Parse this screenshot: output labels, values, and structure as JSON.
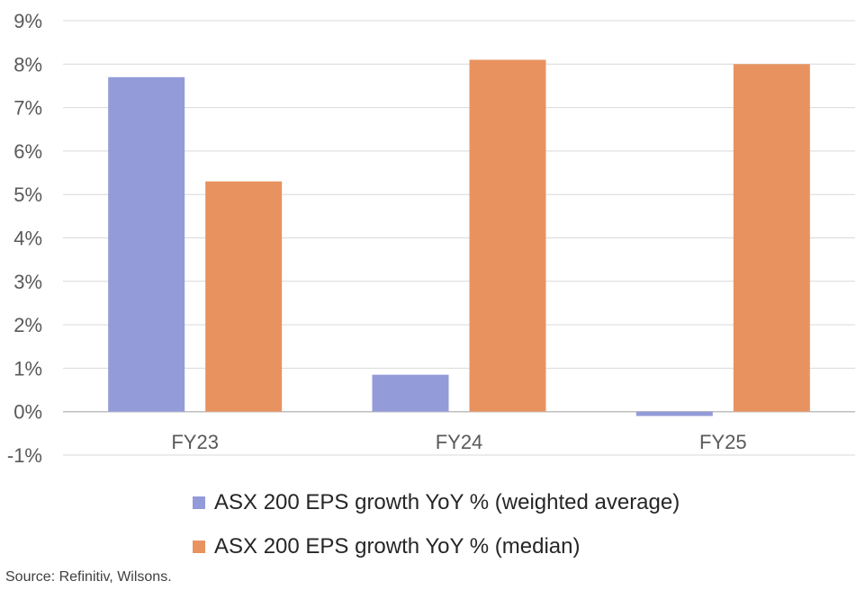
{
  "chart_data": {
    "type": "bar",
    "categories": [
      "FY23",
      "FY24",
      "FY25"
    ],
    "series": [
      {
        "name": "ASX 200 EPS growth YoY % (weighted average)",
        "values": [
          7.7,
          0.85,
          -0.1
        ],
        "color": "#939bd9"
      },
      {
        "name": "ASX 200 EPS growth YoY % (median)",
        "values": [
          5.3,
          8.1,
          8.0
        ],
        "color": "#e8935f"
      }
    ],
    "ylim": [
      -1,
      9
    ],
    "yticks": [
      "-1%",
      "0%",
      "1%",
      "2%",
      "3%",
      "4%",
      "5%",
      "6%",
      "7%",
      "8%",
      "9%"
    ],
    "grid": true,
    "legend_position": "bottom"
  },
  "source": "Source: Refinitiv, Wilsons."
}
